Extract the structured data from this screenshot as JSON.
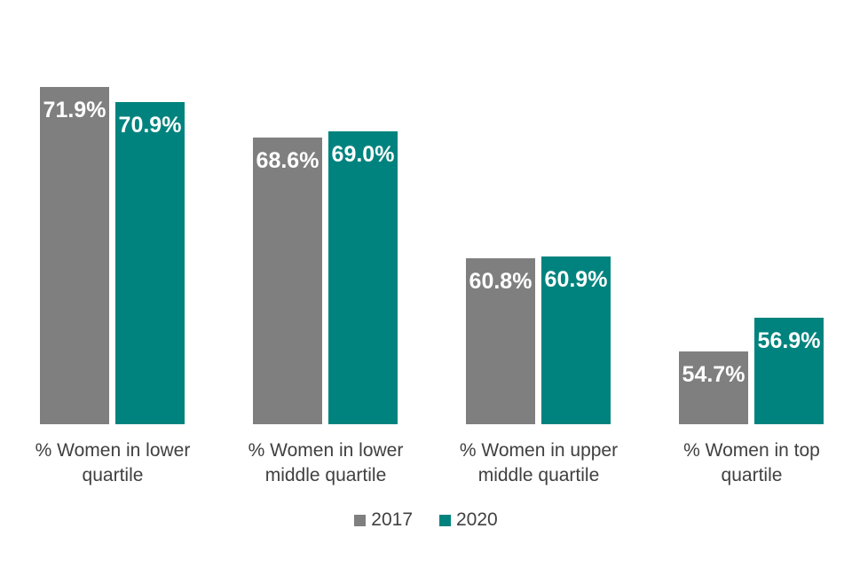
{
  "chart_data": {
    "type": "bar",
    "categories": [
      "% Women in lower quartile",
      "% Women in lower middle quartile",
      "% Women in upper middle quartile",
      "% Women in top quartile"
    ],
    "category_lines": [
      [
        "% Women in lower",
        "quartile"
      ],
      [
        "% Women in lower",
        "middle quartile"
      ],
      [
        "% Women in upper",
        "middle quartile"
      ],
      [
        "% Women in top",
        "quartile"
      ]
    ],
    "series": [
      {
        "name": "2017",
        "color": "#7f7f7f",
        "values": [
          71.9,
          68.6,
          60.8,
          54.7
        ],
        "labels": [
          "71.9%",
          "68.6%",
          "60.8%",
          "54.7%"
        ]
      },
      {
        "name": "2020",
        "color": "#00837e",
        "values": [
          70.9,
          69.0,
          60.9,
          56.9
        ],
        "labels": [
          "70.9%",
          "69.0%",
          "60.9%",
          "56.9%"
        ]
      }
    ],
    "title": "",
    "xlabel": "",
    "ylabel": "",
    "ylim": [
      50,
      75
    ],
    "grid": false,
    "axis_lines": false,
    "legend_position": "bottom",
    "data_label_color": "#ffffff",
    "category_label_color": "#404040"
  }
}
